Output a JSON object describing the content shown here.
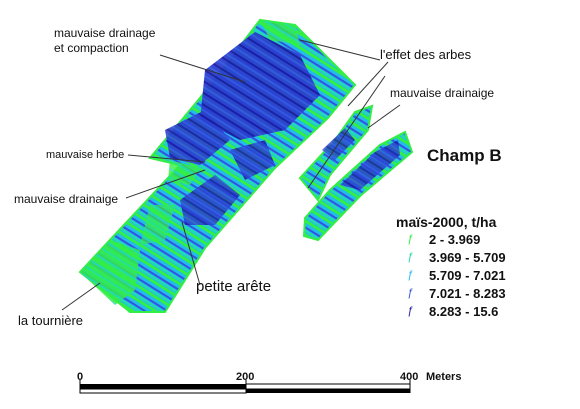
{
  "map": {
    "title": "Champ B",
    "annotations": {
      "drainage_compaction_1": "mauvaise drainage",
      "drainage_compaction_2": "et compaction",
      "arbres": "l'effet des arbes",
      "drainage_right": "mauvaise drainaige",
      "herbe": "mauvaise herbe",
      "drainage_left": "mauvaise drainaige",
      "arete": "petite arête",
      "tourniere": "la tournière"
    },
    "legend": {
      "title": "maïs-2000, t/ha",
      "classes": [
        {
          "range": "2 - 3.969",
          "color": "#33ee44",
          "icon": "yield-point-icon"
        },
        {
          "range": "3.969 - 5.709",
          "color": "#22ddaa",
          "icon": "yield-point-icon"
        },
        {
          "range": "5.709 - 7.021",
          "color": "#22bbee",
          "icon": "yield-point-icon"
        },
        {
          "range": "7.021 - 8.283",
          "color": "#3355dd",
          "icon": "yield-point-icon"
        },
        {
          "range": "8.283 - 15.6",
          "color": "#1a1aa0",
          "icon": "yield-point-icon"
        }
      ]
    },
    "scale_bar": {
      "ticks": [
        "0",
        "200",
        "400"
      ],
      "units": "Meters"
    }
  }
}
